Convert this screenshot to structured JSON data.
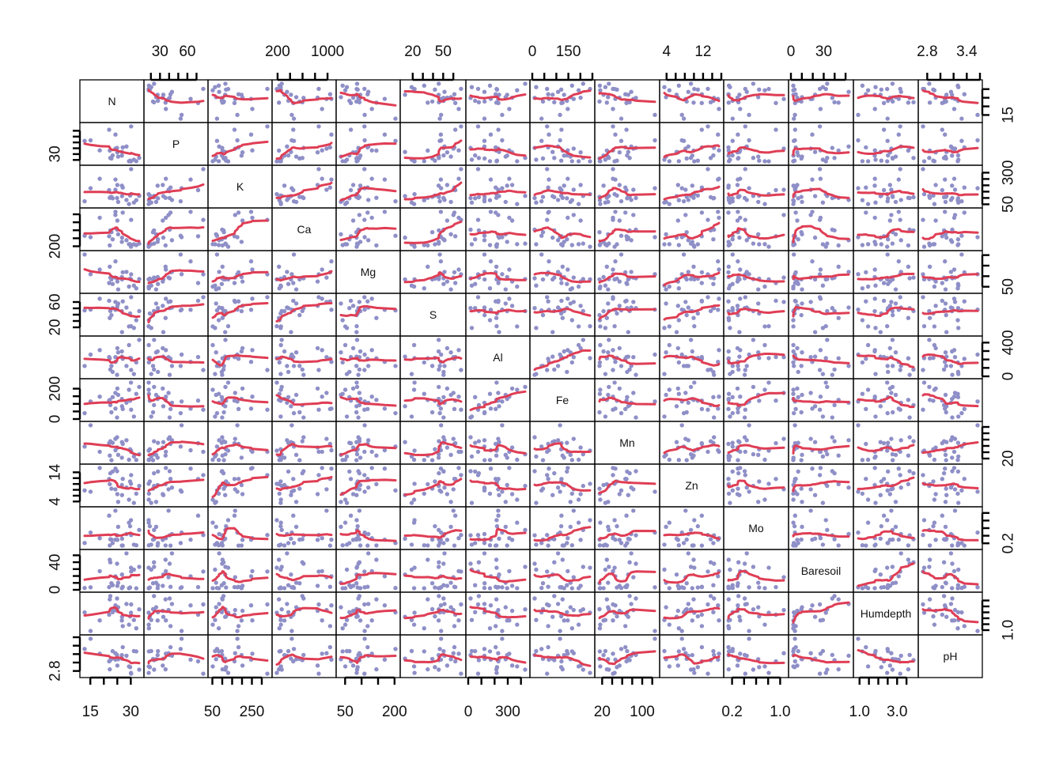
{
  "chart_data": {
    "type": "scatter",
    "subtype": "scatterplot-matrix with loess smooth lines",
    "variables": [
      "N",
      "P",
      "K",
      "Ca",
      "Mg",
      "S",
      "Al",
      "Fe",
      "Mn",
      "Zn",
      "Mo",
      "Baresoil",
      "Humdepth",
      "pH"
    ],
    "point_color": "#8f8fc8",
    "smooth_color": "#df3e55",
    "ranges": {
      "N": [
        12,
        34
      ],
      "P": [
        15,
        80
      ],
      "K": [
        40,
        340
      ],
      "Ca": [
        150,
        1100
      ],
      "Mg": [
        30,
        210
      ],
      "S": [
        10,
        70
      ],
      "Al": [
        0,
        450
      ],
      "Fe": [
        0,
        250
      ],
      "Mn": [
        10,
        130
      ],
      "Zn": [
        3,
        16
      ],
      "Mo": [
        0.1,
        1.1
      ],
      "Baresoil": [
        0,
        55
      ],
      "Humdepth": [
        0.8,
        4.0
      ],
      "pH": [
        2.7,
        3.6
      ]
    },
    "axis_ticks": {
      "top": [
        {
          "var": "P",
          "labels": [
            "30",
            "60"
          ],
          "values": [
            30,
            60
          ],
          "minor": [
            20,
            30,
            40,
            50,
            60,
            70
          ]
        },
        {
          "var": "Ca",
          "labels": [
            "200",
            "1000"
          ],
          "values": [
            200,
            1000
          ],
          "minor": [
            200,
            400,
            600,
            800,
            1000
          ]
        },
        {
          "var": "S",
          "labels": [
            "20",
            "50"
          ],
          "values": [
            20,
            50
          ],
          "minor": [
            20,
            30,
            40,
            50,
            60
          ]
        },
        {
          "var": "Fe",
          "labels": [
            "0",
            "150"
          ],
          "values": [
            0,
            150
          ],
          "minor": [
            0,
            50,
            100,
            150,
            200,
            250
          ]
        },
        {
          "var": "Zn",
          "labels": [
            "4",
            "12"
          ],
          "values": [
            4,
            12
          ],
          "minor": [
            4,
            6,
            8,
            10,
            12,
            14,
            16
          ]
        },
        {
          "var": "Baresoil",
          "labels": [
            "0",
            "30"
          ],
          "values": [
            0,
            30
          ],
          "minor": [
            0,
            10,
            20,
            30,
            40,
            50
          ]
        },
        {
          "var": "pH",
          "labels": [
            "2.8",
            "3.4"
          ],
          "values": [
            2.8,
            3.4
          ],
          "minor": [
            2.8,
            3.0,
            3.2,
            3.4,
            3.6
          ]
        }
      ],
      "bottom": [
        {
          "var": "N",
          "labels": [
            "15",
            "30"
          ],
          "values": [
            15,
            30
          ],
          "minor": [
            15,
            20,
            25,
            30
          ]
        },
        {
          "var": "K",
          "labels": [
            "50",
            "250"
          ],
          "values": [
            50,
            250
          ],
          "minor": [
            50,
            100,
            150,
            200,
            250,
            300
          ]
        },
        {
          "var": "Mg",
          "labels": [
            "50",
            "200"
          ],
          "values": [
            50,
            200
          ],
          "minor": [
            50,
            100,
            150,
            200
          ]
        },
        {
          "var": "Al",
          "labels": [
            "0",
            "300"
          ],
          "values": [
            0,
            300
          ],
          "minor": [
            0,
            100,
            200,
            300,
            400
          ]
        },
        {
          "var": "Mn",
          "labels": [
            "20",
            "100"
          ],
          "values": [
            20,
            100
          ],
          "minor": [
            20,
            40,
            60,
            80,
            100,
            120
          ]
        },
        {
          "var": "Mo",
          "labels": [
            "0.2",
            "1.0"
          ],
          "values": [
            0.2,
            1.0
          ],
          "minor": [
            0.2,
            0.4,
            0.6,
            0.8,
            1.0
          ]
        },
        {
          "var": "Humdepth",
          "labels": [
            "1.0",
            "3.0"
          ],
          "values": [
            1.0,
            3.0
          ],
          "minor": [
            1.0,
            1.5,
            2.0,
            2.5,
            3.0,
            3.5
          ]
        }
      ],
      "left": [
        {
          "var": "P",
          "labels": [
            "30"
          ],
          "values": [
            30
          ],
          "minor": [
            20,
            30,
            40,
            50,
            60,
            70
          ]
        },
        {
          "var": "Ca",
          "labels": [
            "200"
          ],
          "values": [
            200
          ],
          "minor": [
            200,
            400,
            600,
            800,
            1000
          ]
        },
        {
          "var": "S",
          "labels": [
            "20",
            "60"
          ],
          "values": [
            20,
            60
          ],
          "minor": [
            20,
            30,
            40,
            50,
            60
          ]
        },
        {
          "var": "Fe",
          "labels": [
            "0",
            "200"
          ],
          "values": [
            0,
            200
          ],
          "minor": [
            0,
            50,
            100,
            150,
            200
          ]
        },
        {
          "var": "Zn",
          "labels": [
            "4",
            "14"
          ],
          "values": [
            4,
            14
          ],
          "minor": [
            4,
            6,
            8,
            10,
            12,
            14
          ]
        },
        {
          "var": "Baresoil",
          "labels": [
            "0",
            "40"
          ],
          "values": [
            0,
            40
          ],
          "minor": [
            0,
            10,
            20,
            30,
            40,
            50
          ]
        },
        {
          "var": "pH",
          "labels": [
            "2.8"
          ],
          "values": [
            2.8
          ],
          "minor": [
            2.8,
            3.0,
            3.2,
            3.4,
            3.6
          ]
        }
      ],
      "right": [
        {
          "var": "N",
          "labels": [
            "15"
          ],
          "values": [
            15
          ],
          "minor": [
            15,
            20,
            25,
            30
          ]
        },
        {
          "var": "K",
          "labels": [
            "50",
            "300"
          ],
          "values": [
            50,
            300
          ],
          "minor": [
            50,
            100,
            150,
            200,
            250,
            300
          ]
        },
        {
          "var": "Mg",
          "labels": [
            "50"
          ],
          "values": [
            50
          ],
          "minor": [
            50,
            100,
            150,
            200
          ]
        },
        {
          "var": "Al",
          "labels": [
            "0",
            "400"
          ],
          "values": [
            0,
            400
          ],
          "minor": [
            0,
            100,
            200,
            300,
            400
          ]
        },
        {
          "var": "Mn",
          "labels": [
            "20"
          ],
          "values": [
            20
          ],
          "minor": [
            20,
            40,
            60,
            80,
            100,
            120
          ]
        },
        {
          "var": "Mo",
          "labels": [
            "0.2"
          ],
          "values": [
            0.2
          ],
          "minor": [
            0.2,
            0.4,
            0.6,
            0.8,
            1.0
          ]
        },
        {
          "var": "Humdepth",
          "labels": [
            "1.0"
          ],
          "values": [
            1.0
          ],
          "minor": [
            1.0,
            1.5,
            2.0,
            2.5,
            3.0,
            3.5
          ]
        }
      ]
    }
  }
}
